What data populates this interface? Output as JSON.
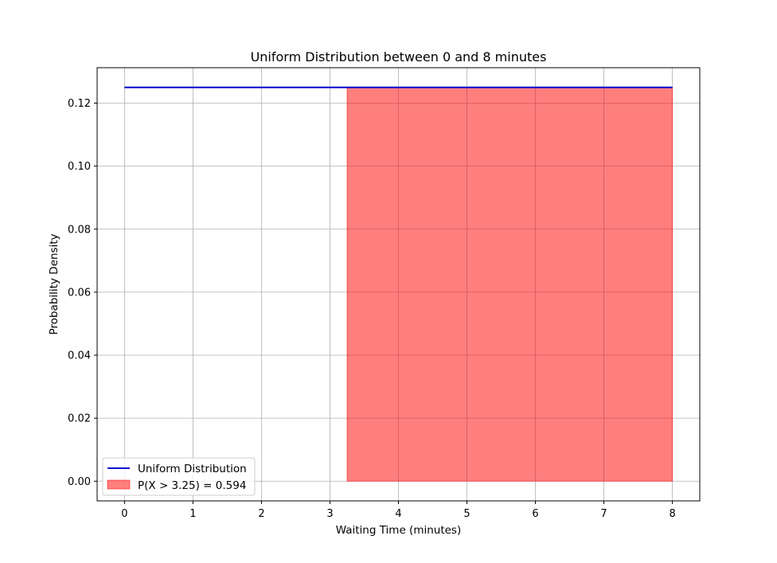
{
  "chart_data": {
    "type": "line",
    "title": "Uniform Distribution between 0 and 8 minutes",
    "xlabel": "Waiting Time (minutes)",
    "ylabel": "Probability Density",
    "xlim": [
      -0.4,
      8.4
    ],
    "ylim": [
      -0.00625,
      0.13125
    ],
    "x_ticks": [
      0,
      1,
      2,
      3,
      4,
      5,
      6,
      7,
      8
    ],
    "x_tick_labels": [
      "0",
      "1",
      "2",
      "3",
      "4",
      "5",
      "6",
      "7",
      "8"
    ],
    "y_ticks": [
      0.0,
      0.02,
      0.04,
      0.06,
      0.08,
      0.1,
      0.12
    ],
    "y_tick_labels": [
      "0.00",
      "0.02",
      "0.04",
      "0.06",
      "0.08",
      "0.10",
      "0.12"
    ],
    "grid": true,
    "legend_position": "lower-left",
    "series": [
      {
        "name": "Uniform Distribution",
        "kind": "line",
        "color": "#0000cc",
        "x": [
          0,
          8
        ],
        "y": [
          0.125,
          0.125
        ]
      },
      {
        "name": "P(X > 3.25) = 0.594",
        "kind": "area",
        "color": "#ff0000",
        "opacity": 0.5,
        "x": [
          3.25,
          8
        ],
        "y": [
          0.125,
          0.125
        ]
      }
    ]
  }
}
